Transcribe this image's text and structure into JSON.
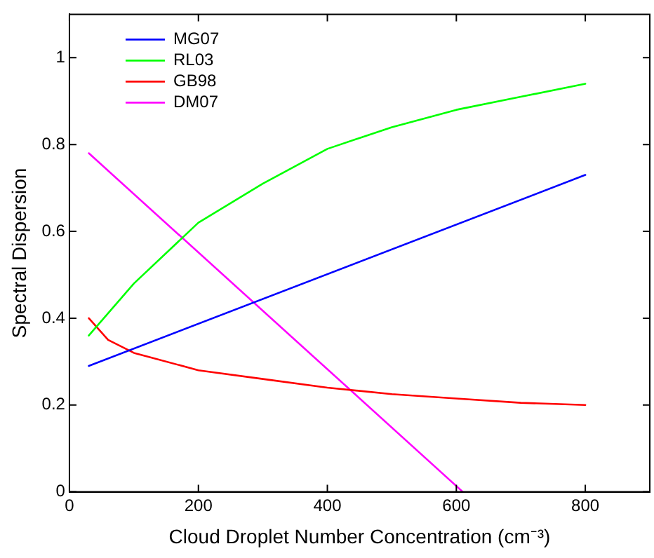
{
  "chart_data": {
    "type": "line",
    "xlabel": "Cloud Droplet Number Concentration (cm⁻³)",
    "ylabel": "Spectral Dispersion",
    "xlim": [
      0,
      900
    ],
    "xticks": [
      0,
      200,
      400,
      600,
      800
    ],
    "ylim": [
      0,
      1.1
    ],
    "yticks": [
      0,
      0.2,
      0.4,
      0.6,
      0.8,
      1
    ],
    "grid": false,
    "legend": "top left",
    "marker": "none",
    "line_style": "solid",
    "series": [
      {
        "name": "MG07",
        "color": "#0000ff",
        "x": [
          30,
          800
        ],
        "values": [
          0.29,
          0.73
        ]
      },
      {
        "name": "RL03",
        "color": "#00ff00",
        "x": [
          30,
          100,
          200,
          300,
          400,
          500,
          600,
          700,
          800
        ],
        "values": [
          0.36,
          0.48,
          0.62,
          0.71,
          0.79,
          0.84,
          0.88,
          0.91,
          0.94
        ]
      },
      {
        "name": "GB98",
        "color": "#ff0000",
        "x": [
          30,
          60,
          100,
          200,
          300,
          400,
          500,
          600,
          700,
          800
        ],
        "values": [
          0.4,
          0.35,
          0.32,
          0.28,
          0.26,
          0.24,
          0.225,
          0.215,
          0.205,
          0.2
        ]
      },
      {
        "name": "DM07",
        "color": "#ff00ff",
        "x": [
          30,
          610
        ],
        "values": [
          0.78,
          0
        ]
      }
    ]
  }
}
